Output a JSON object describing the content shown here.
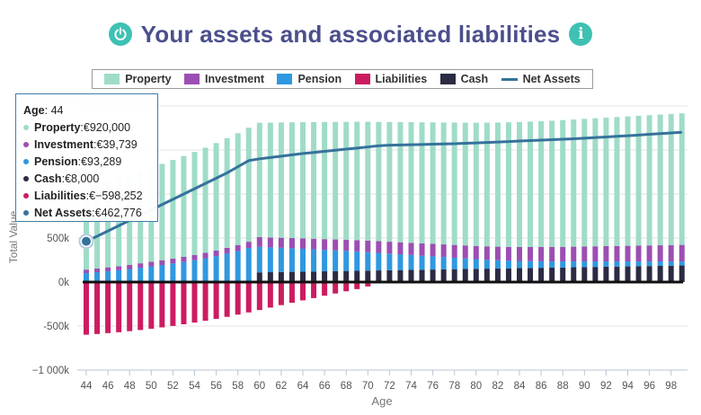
{
  "header": {
    "title": "Your assets and associated liabilities",
    "info_icon": "i"
  },
  "colors": {
    "property": "#9fdcc8",
    "investment": "#9b4fb2",
    "pension": "#2f98e0",
    "liabilities": "#cc1c61",
    "cash": "#2b2b44",
    "net_assets": "#35729b",
    "title": "#4b4f8c",
    "accent": "#3ec1b3"
  },
  "legend": [
    {
      "label": "Property",
      "key": "property"
    },
    {
      "label": "Investment",
      "key": "investment"
    },
    {
      "label": "Pension",
      "key": "pension"
    },
    {
      "label": "Liabilities",
      "key": "liabilities"
    },
    {
      "label": "Cash",
      "key": "cash"
    },
    {
      "label": "Net Assets",
      "key": "net_assets"
    }
  ],
  "tooltip": {
    "age_label": "Age",
    "age_value": "44",
    "rows": [
      {
        "label": "Property",
        "value": "€920,000",
        "key": "property"
      },
      {
        "label": "Investment",
        "value": "€39,739",
        "key": "investment"
      },
      {
        "label": "Pension",
        "value": "€93,289",
        "key": "pension"
      },
      {
        "label": "Cash",
        "value": "€8,000",
        "key": "cash"
      },
      {
        "label": "Liabilities",
        "value": "€−598,252",
        "key": "liabilities"
      },
      {
        "label": "Net Assets",
        "value": "€462,776",
        "key": "net_assets"
      }
    ]
  },
  "chart_data": {
    "type": "bar",
    "xlabel": "Age",
    "ylabel": "Total Value",
    "ylim": [
      -1000000,
      2000000
    ],
    "x_tick_labels": [
      "44",
      "46",
      "48",
      "50",
      "52",
      "54",
      "56",
      "58",
      "60",
      "62",
      "64",
      "66",
      "68",
      "70",
      "72",
      "74",
      "76",
      "78",
      "80",
      "82",
      "84",
      "86",
      "88",
      "90",
      "92",
      "94",
      "96",
      "98"
    ],
    "y_tick_labels": [
      {
        "value": 500000,
        "label": "500k"
      },
      {
        "value": 0,
        "label": "0k"
      },
      {
        "value": -500000,
        "label": "-500k"
      },
      {
        "value": -1000000,
        "label": "−1 000k"
      }
    ],
    "grid": true,
    "legend_position": "top",
    "categories": [
      44,
      45,
      46,
      47,
      48,
      49,
      50,
      51,
      52,
      53,
      54,
      55,
      56,
      57,
      58,
      59,
      60,
      61,
      62,
      63,
      64,
      65,
      66,
      67,
      68,
      69,
      70,
      71,
      72,
      73,
      74,
      75,
      76,
      77,
      78,
      79,
      80,
      81,
      82,
      83,
      84,
      85,
      86,
      87,
      88,
      89,
      90,
      91,
      92,
      93,
      94,
      95,
      96,
      97,
      98,
      99
    ],
    "series": [
      {
        "name": "Cash",
        "key": "cash",
        "values": [
          8000,
          8000,
          8000,
          8000,
          8000,
          8000,
          8000,
          8000,
          8000,
          8000,
          8000,
          8000,
          8000,
          8000,
          8000,
          8000,
          110000,
          112000,
          114000,
          116000,
          118000,
          120000,
          122000,
          124000,
          126000,
          128000,
          130000,
          132000,
          134000,
          136000,
          138000,
          140000,
          142000,
          144000,
          146000,
          148000,
          150000,
          152000,
          154000,
          156000,
          158000,
          160000,
          162000,
          164000,
          166000,
          168000,
          170000,
          172000,
          174000,
          176000,
          178000,
          180000,
          182000,
          184000,
          186000,
          188000
        ]
      },
      {
        "name": "Pension",
        "key": "pension",
        "values": [
          93289,
          104000,
          115000,
          126000,
          140000,
          155000,
          170000,
          186000,
          203000,
          220000,
          240000,
          262000,
          287000,
          315000,
          345000,
          380000,
          290000,
          282000,
          275000,
          268000,
          260000,
          252000,
          244000,
          236000,
          228000,
          220000,
          210000,
          200000,
          190000,
          180000,
          170000,
          160000,
          150000,
          140000,
          130000,
          120000,
          110000,
          102000,
          94000,
          88000,
          82000,
          78000,
          74000,
          70000,
          68000,
          66000,
          64000,
          62000,
          60000,
          58000,
          56000,
          54000,
          52000,
          50000,
          48000,
          46000
        ]
      },
      {
        "name": "Investment",
        "key": "investment",
        "values": [
          39739,
          42000,
          44000,
          46000,
          48000,
          50000,
          52000,
          54000,
          56000,
          58000,
          60000,
          62000,
          64000,
          66000,
          68000,
          70000,
          110000,
          112000,
          114000,
          116000,
          118000,
          120000,
          122000,
          124000,
          126000,
          128000,
          130000,
          132000,
          134000,
          136000,
          138000,
          140000,
          142000,
          144000,
          146000,
          148000,
          150000,
          152000,
          154000,
          156000,
          158000,
          160000,
          162000,
          164000,
          166000,
          168000,
          170000,
          172000,
          174000,
          176000,
          178000,
          180000,
          182000,
          184000,
          186000,
          188000
        ]
      },
      {
        "name": "Property",
        "key": "property",
        "values": [
          920000,
          945000,
          970000,
          995000,
          1020000,
          1045000,
          1070000,
          1095000,
          1120000,
          1145000,
          1170000,
          1195000,
          1220000,
          1245000,
          1270000,
          1295000,
          1300000,
          1305000,
          1310000,
          1315000,
          1320000,
          1325000,
          1330000,
          1335000,
          1340000,
          1345000,
          1350000,
          1355000,
          1360000,
          1365000,
          1370000,
          1375000,
          1380000,
          1385000,
          1390000,
          1395000,
          1400000,
          1405000,
          1410000,
          1415000,
          1420000,
          1425000,
          1430000,
          1435000,
          1440000,
          1445000,
          1450000,
          1455000,
          1460000,
          1465000,
          1470000,
          1475000,
          1480000,
          1485000,
          1490000,
          1495000
        ]
      },
      {
        "name": "Liabilities",
        "key": "liabilities",
        "values": [
          -598252,
          -590000,
          -580000,
          -570000,
          -558000,
          -545000,
          -530000,
          -515000,
          -498000,
          -480000,
          -460000,
          -440000,
          -418000,
          -395000,
          -370000,
          -345000,
          -318000,
          -290000,
          -262000,
          -235000,
          -208000,
          -182000,
          -155000,
          -130000,
          -105000,
          -80000,
          -50000,
          0,
          0,
          0,
          0,
          0,
          0,
          0,
          0,
          0,
          0,
          0,
          0,
          0,
          0,
          0,
          0,
          0,
          0,
          0,
          0,
          0,
          0,
          0,
          0,
          0,
          0,
          0,
          0,
          0
        ]
      },
      {
        "name": "Net Assets",
        "key": "net_assets",
        "type": "line",
        "values": [
          462776,
          520000,
          580000,
          640000,
          700000,
          760000,
          820000,
          880000,
          940000,
          1000000,
          1060000,
          1120000,
          1180000,
          1240000,
          1310000,
          1380000,
          1400000,
          1415000,
          1430000,
          1445000,
          1460000,
          1472000,
          1485000,
          1498000,
          1510000,
          1522000,
          1535000,
          1548000,
          1555000,
          1557000,
          1560000,
          1563000,
          1566000,
          1569000,
          1572000,
          1576000,
          1580000,
          1585000,
          1590000,
          1596000,
          1602000,
          1607000,
          1612000,
          1617000,
          1622000,
          1627000,
          1634000,
          1641000,
          1648000,
          1655000,
          1662000,
          1670000,
          1678000,
          1686000,
          1694000,
          1702000
        ]
      }
    ]
  }
}
